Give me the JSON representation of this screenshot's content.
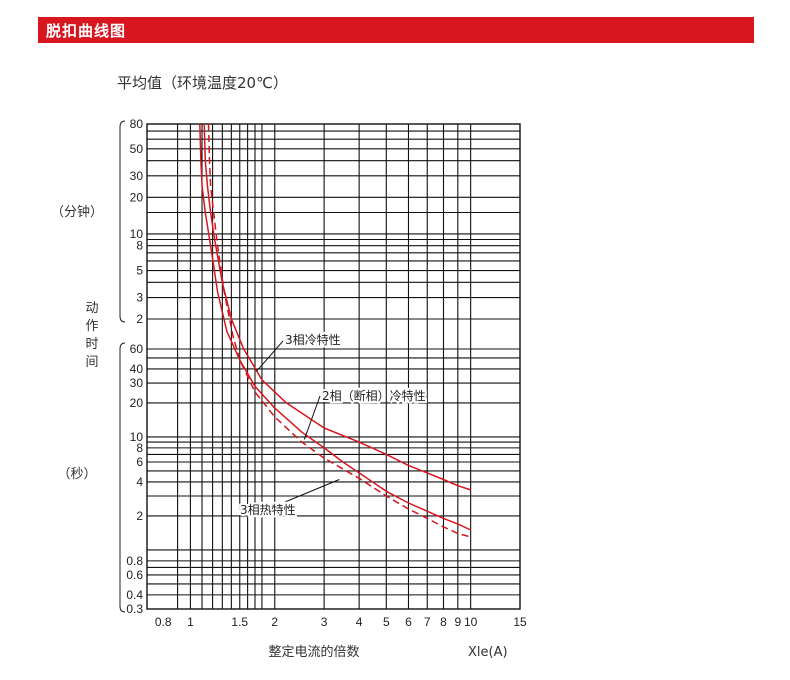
{
  "header": {
    "title": "脱扣曲线图",
    "color": "#d7161f"
  },
  "chart_data": {
    "type": "line",
    "title": "平均值（环境温度20℃）",
    "xlabel": "整定电流的倍数",
    "xunit": "Xle(A)",
    "ylabel": "动作时间",
    "y_group_labels": {
      "minutes": "（分钟）",
      "seconds": "（秒）"
    },
    "x_ticks": [
      0.8,
      1,
      1.5,
      2,
      3,
      4,
      5,
      6,
      7,
      8,
      9,
      10,
      15
    ],
    "x_tick_labels": [
      "0.8",
      "1",
      "1.5",
      "2",
      "3",
      "4",
      "5",
      "6",
      "7",
      "8",
      "9",
      "10",
      "15"
    ],
    "minute_ticks": [
      "80",
      "50",
      "30",
      "20",
      "10",
      "8",
      "5",
      "3",
      "2"
    ],
    "second_ticks": [
      "60",
      "40",
      "30",
      "20",
      "10",
      "8",
      "6",
      "4",
      "2",
      "0.8",
      "0.6",
      "0.4",
      "0.3"
    ],
    "line_color": "#d7161f",
    "grid": true,
    "series": [
      {
        "name": "3相冷特性",
        "style": "solid",
        "x": [
          1.12,
          1.13,
          1.15,
          1.18,
          1.22,
          1.3,
          1.4,
          1.55,
          1.8,
          2.2,
          3,
          4,
          5,
          6,
          7,
          8,
          9,
          10
        ],
        "y_seconds": [
          4800,
          2400,
          1500,
          900,
          540,
          240,
          120,
          60,
          32,
          20,
          12,
          9,
          7,
          5.6,
          4.8,
          4.2,
          3.7,
          3.4
        ]
      },
      {
        "name": "2相（断相）冷特性",
        "style": "solid",
        "x": [
          1.08,
          1.09,
          1.1,
          1.13,
          1.18,
          1.25,
          1.35,
          1.5,
          1.7,
          2,
          2.5,
          3,
          3.5,
          4,
          5,
          6,
          7,
          8,
          9,
          10
        ],
        "y_seconds": [
          4800,
          2400,
          1500,
          900,
          480,
          200,
          90,
          48,
          28,
          18,
          11,
          8,
          6,
          4.8,
          3.3,
          2.6,
          2.2,
          1.9,
          1.7,
          1.5
        ]
      },
      {
        "name": "3相热特性",
        "style": "dashed",
        "x": [
          1.16,
          1.17,
          1.18,
          1.21,
          1.25,
          1.32,
          1.42,
          1.5,
          1.7,
          2,
          2.5,
          3,
          3.5,
          4,
          5,
          6,
          7,
          8,
          9,
          10
        ],
        "y_seconds": [
          4800,
          2400,
          1500,
          900,
          480,
          200,
          80,
          48,
          25,
          15,
          9,
          6.5,
          5.2,
          4.3,
          3,
          2.3,
          1.9,
          1.6,
          1.4,
          1.3
        ]
      }
    ],
    "annotations": [
      {
        "text": "3相冷特性",
        "x": 1.58,
        "y_seconds": 62
      },
      {
        "text": "2相（断相）冷特性",
        "x": 2.4,
        "y_seconds": 12
      },
      {
        "text": "3相热特性",
        "x": 2.8,
        "y_seconds": 5.5
      }
    ]
  }
}
